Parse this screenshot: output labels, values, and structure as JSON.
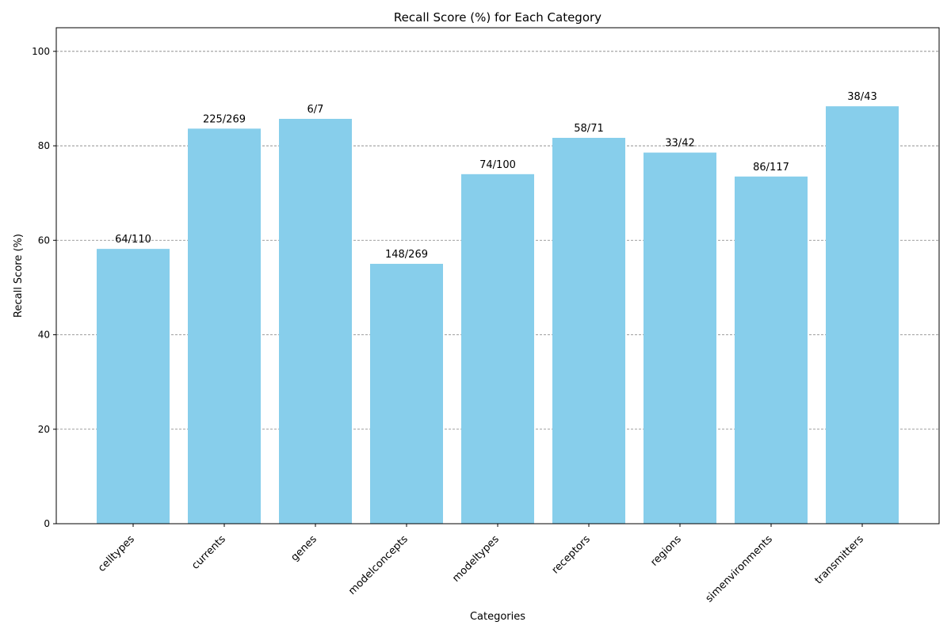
{
  "chart_data": {
    "type": "bar",
    "title": "Recall Score (%) for Each Category",
    "xlabel": "Categories",
    "ylabel": "Recall Score (%)",
    "ylim": [
      0,
      105
    ],
    "yticks": [
      0,
      20,
      40,
      60,
      80,
      100
    ],
    "grid": "y-dashed",
    "categories": [
      "celltypes",
      "currents",
      "genes",
      "modelconcepts",
      "modeltypes",
      "receptors",
      "regions",
      "simenvironments",
      "transmitters"
    ],
    "values": [
      58.18,
      83.64,
      85.71,
      55.02,
      74.0,
      81.69,
      78.57,
      73.5,
      88.37
    ],
    "bar_labels": [
      "64/110",
      "225/269",
      "6/7",
      "148/269",
      "74/100",
      "58/71",
      "33/42",
      "86/117",
      "38/43"
    ],
    "colors": {
      "bar": "#87CEEB",
      "grid": "#808080",
      "axis": "#000000"
    }
  }
}
